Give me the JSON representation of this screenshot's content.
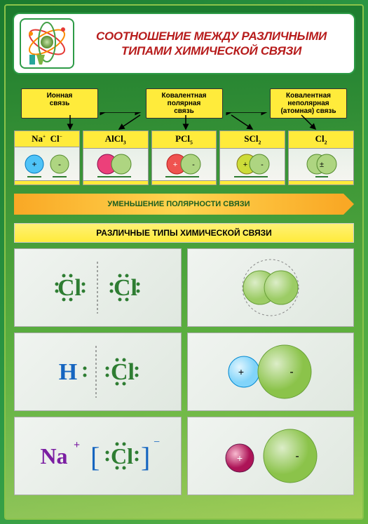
{
  "title_line1": "СООТНОШЕНИЕ МЕЖДУ РАЗЛИЧНЫМИ",
  "title_line2": "ТИПАМИ ХИМИЧЕСКОЙ СВЯЗИ",
  "bond_types": [
    {
      "label_l1": "Ионная",
      "label_l2": "связь"
    },
    {
      "label_l1": "Ковалентная",
      "label_l2": "полярная",
      "label_l3": "связь"
    },
    {
      "label_l1": "Ковалентная",
      "label_l2": "неполярная",
      "label_l3": "(атомная) связь"
    }
  ],
  "formulas": [
    {
      "head_html": "Na<sup>+</sup>&nbsp;&nbsp;Cl<sup>−</sup>",
      "blue": "#4fc3f7",
      "green": "#aed581"
    },
    {
      "head_html": "AlCl<sub>3</sub>",
      "pink": "#ec407a",
      "green": "#aed581"
    },
    {
      "head_html": "PCl<sub>5</sub>",
      "red": "#ef5350",
      "green": "#aed581"
    },
    {
      "head_html": "SCl<sub>2</sub>",
      "lime": "#cddc39",
      "green": "#aed581"
    },
    {
      "head_html": "Cl<sub>2</sub>",
      "green": "#aed581"
    }
  ],
  "arrow_text": "УМЕНЬШЕНИЕ ПОЛЯРНОСТИ СВЯЗИ",
  "section_head": "РАЗЛИЧНЫЕ ТИПЫ ХИМИЧЕСКОЙ СВЯЗИ",
  "colors": {
    "frame_green": "#2d9b47",
    "yellow": "#ffeb3b",
    "title_red": "#b71c1c",
    "cl_green": "#2e7d32",
    "h_blue": "#1565c0",
    "na_purple": "#7b1fa2",
    "atom_green": "#9ccc65",
    "atom_dark": "#689f38",
    "atom_blue": "#81d4fa",
    "atom_magenta": "#ad1457"
  },
  "lewis": {
    "cl": "Cl",
    "h": "H",
    "na_plus": "Na",
    "plus": "+",
    "minus": "-"
  }
}
